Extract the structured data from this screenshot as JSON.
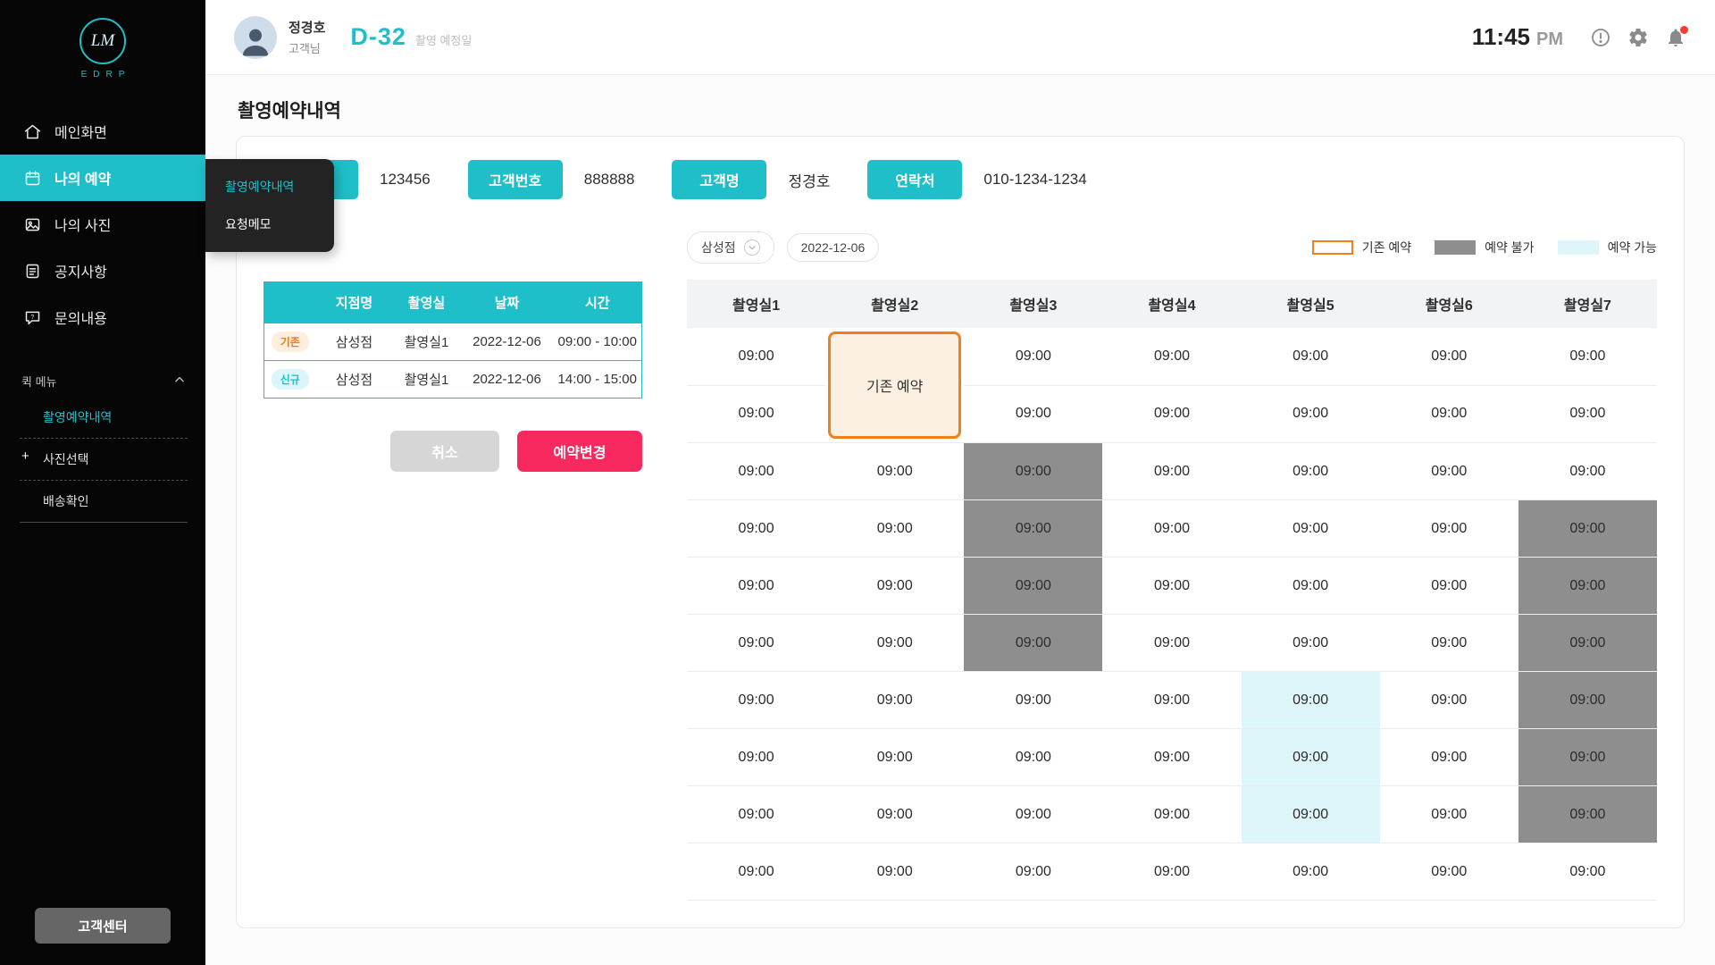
{
  "colors": {
    "accent": "#1fbfc9",
    "pink": "#f8295e",
    "orange": "#ef7f1f",
    "unavailable": "#8e8e8e",
    "available": "#def6fa",
    "existing_bg": "#fcf0e2"
  },
  "sidebar": {
    "logo": {
      "initials": "LM",
      "sub": "EDRP"
    },
    "items": [
      {
        "label": "메인화면",
        "icon": "home-icon",
        "active": false
      },
      {
        "label": "나의 예약",
        "icon": "calendar-icon",
        "active": true
      },
      {
        "label": "나의 사진",
        "icon": "photo-icon",
        "active": false
      },
      {
        "label": "공지사항",
        "icon": "notice-icon",
        "active": false
      },
      {
        "label": "문의내용",
        "icon": "inquiry-icon",
        "active": false
      }
    ],
    "quick_menu": {
      "title": "퀵 메뉴",
      "items": [
        {
          "label": "촬영예약내역",
          "active": true
        },
        {
          "label": "사진선택",
          "plus": true
        },
        {
          "label": "배송확인"
        }
      ]
    },
    "footer_button": "고객센터"
  },
  "flyout": {
    "items": [
      {
        "label": "촬영예약내역",
        "active": true
      },
      {
        "label": "요청메모",
        "active": false
      }
    ]
  },
  "header": {
    "user_name": "정경호",
    "user_role": "고객님",
    "dday": "D-32",
    "dday_caption": "촬영 예정일",
    "time": "11:45",
    "meridiem": "PM"
  },
  "page": {
    "title": "촬영예약내역"
  },
  "filters": [
    {
      "label": "",
      "value": "123456"
    },
    {
      "label": "고객번호",
      "value": "888888"
    },
    {
      "label": "고객명",
      "value": "정경호"
    },
    {
      "label": "연락처",
      "value": "010-1234-1234"
    }
  ],
  "booking_table": {
    "headers": [
      "",
      "지점명",
      "촬영실",
      "날짜",
      "시간"
    ],
    "rows": [
      {
        "badge": "기존",
        "badge_type": "existing",
        "branch": "삼성점",
        "room": "촬영실1",
        "date": "2022-12-06",
        "time": "09:00 - 10:00"
      },
      {
        "badge": "신규",
        "badge_type": "new",
        "branch": "삼성점",
        "room": "촬영실1",
        "date": "2022-12-06",
        "time": "14:00 - 15:00"
      }
    ],
    "cancel_label": "취소",
    "change_label": "예약변경"
  },
  "schedule": {
    "branch": "삼성점",
    "date": "2022-12-06",
    "legend": [
      {
        "label": "기존 예약",
        "type": "existing"
      },
      {
        "label": "예약 불가",
        "type": "unavailable"
      },
      {
        "label": "예약 가능",
        "type": "available"
      }
    ],
    "columns": [
      "촬영실1",
      "촬영실2",
      "촬영실3",
      "촬영실4",
      "촬영실5",
      "촬영실6",
      "촬영실7"
    ],
    "time": "09:00",
    "existing_label": "기존 예약",
    "cells": [
      [
        "n",
        "e",
        "n",
        "n",
        "n",
        "n",
        "n"
      ],
      [
        "n",
        "e2",
        "n",
        "n",
        "n",
        "n",
        "n"
      ],
      [
        "n",
        "n",
        "u",
        "n",
        "n",
        "n",
        "n"
      ],
      [
        "n",
        "n",
        "u",
        "n",
        "n",
        "n",
        "u"
      ],
      [
        "n",
        "n",
        "u",
        "n",
        "n",
        "n",
        "u"
      ],
      [
        "n",
        "n",
        "u",
        "n",
        "n",
        "n",
        "u"
      ],
      [
        "n",
        "n",
        "n",
        "n",
        "a",
        "n",
        "u"
      ],
      [
        "n",
        "n",
        "n",
        "n",
        "a",
        "n",
        "u"
      ],
      [
        "n",
        "n",
        "n",
        "n",
        "a",
        "n",
        "u"
      ],
      [
        "n",
        "n",
        "n",
        "n",
        "n",
        "n",
        "n"
      ]
    ]
  }
}
